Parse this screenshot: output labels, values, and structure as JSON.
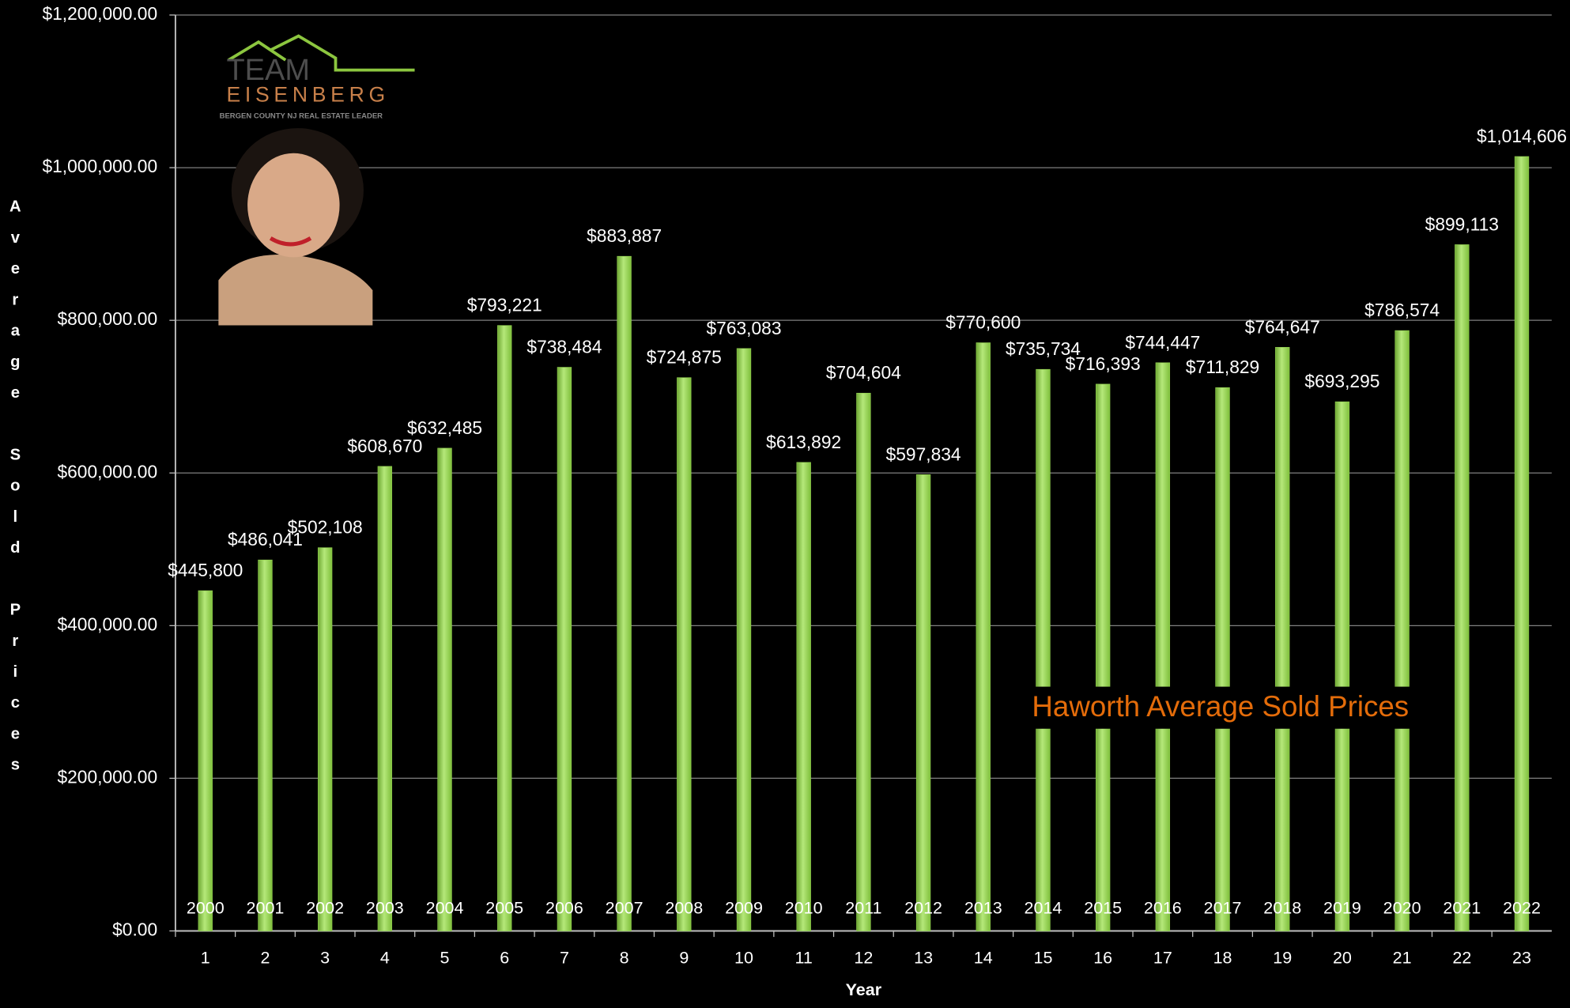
{
  "chart_data": {
    "type": "bar",
    "title": "Haworth Average Sold Prices",
    "y_label": "Average Sold Prices",
    "x_label": "Year",
    "categories": [
      "1",
      "2",
      "3",
      "4",
      "5",
      "6",
      "7",
      "8",
      "9",
      "10",
      "11",
      "12",
      "13",
      "14",
      "15",
      "16",
      "17",
      "18",
      "19",
      "20",
      "21",
      "22",
      "23"
    ],
    "year_labels": [
      "2000",
      "2001",
      "2002",
      "2003",
      "2004",
      "2005",
      "2006",
      "2007",
      "2008",
      "2009",
      "2010",
      "2011",
      "2012",
      "2013",
      "2014",
      "2015",
      "2016",
      "2017",
      "2018",
      "2019",
      "2020",
      "2021",
      "2022"
    ],
    "values": [
      445800,
      486041,
      502108,
      608670,
      632485,
      793221,
      738484,
      883887,
      724875,
      763083,
      613892,
      704604,
      597834,
      770600,
      735734,
      716393,
      744447,
      711829,
      764647,
      693295,
      786574,
      899113,
      1014606
    ],
    "value_labels": [
      "$445,800",
      "$486,041",
      "$502,108",
      "$608,670",
      "$632,485",
      "$793,221",
      "$738,484",
      "$883,887",
      "$724,875",
      "$763,083",
      "$613,892",
      "$704,604",
      "$597,834",
      "$770,600",
      "$735,734",
      "$716,393",
      "$744,447",
      "$711,829",
      "$764,647",
      "$693,295",
      "$786,574",
      "$899,113",
      "$1,014,606"
    ],
    "color": "#92d050",
    "ylim": [
      0,
      1200000
    ],
    "yticks": [
      {
        "value": 0,
        "label": "$0.00"
      },
      {
        "value": 200000,
        "label": "$200,000.00"
      },
      {
        "value": 400000,
        "label": "$400,000.00"
      },
      {
        "value": 600000,
        "label": "$600,000.00"
      },
      {
        "value": 800000,
        "label": "$800,000.00"
      },
      {
        "value": 1000000,
        "label": "$1,000,000.00"
      },
      {
        "value": 1200000,
        "label": "$1,200,000.00"
      }
    ],
    "grid": true
  },
  "logo": {
    "line1": "TEAM",
    "line2": "EISENBERG",
    "tagline": "BERGEN COUNTY NJ REAL ESTATE LEADER"
  }
}
